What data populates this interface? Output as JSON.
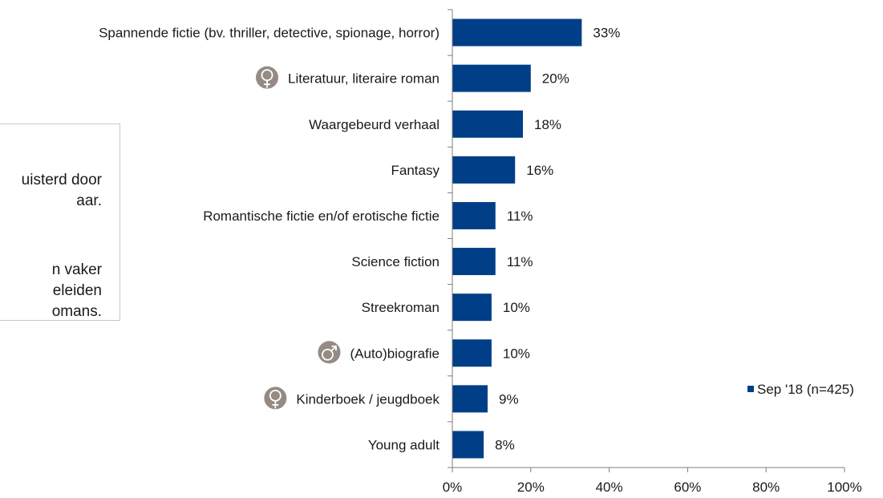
{
  "note": {
    "lines": [
      "uisterd door",
      "aar.",
      "n vaker",
      "eleiden",
      "omans."
    ]
  },
  "chart_data": {
    "type": "bar",
    "orientation": "horizontal",
    "categories": [
      "Spannende fictie (bv. thriller, detective, spionage, horror)",
      "Literatuur, literaire roman",
      "Waargebeurd verhaal",
      "Fantasy",
      "Romantische fictie en/of erotische fictie",
      "Science fiction",
      "Streekroman",
      "(Auto)biografie",
      "Kinderboek / jeugdboek",
      "Young adult"
    ],
    "series": [
      {
        "name": "Sep '18 (n=425)",
        "values": [
          33,
          20,
          18,
          16,
          11,
          11,
          10,
          10,
          9,
          8
        ],
        "value_labels": [
          "33%",
          "20%",
          "18%",
          "16%",
          "11%",
          "11%",
          "10%",
          "10%",
          "9%",
          "8%"
        ],
        "color": "#003f87"
      }
    ],
    "gender_markers": [
      null,
      "female-icon",
      null,
      null,
      null,
      null,
      null,
      "male-icon",
      "female-icon",
      null
    ],
    "marker_color": "#958a84",
    "xlim": [
      0,
      100
    ],
    "xticks": [
      0,
      20,
      40,
      60,
      80,
      100
    ],
    "xtick_labels": [
      "0%",
      "20%",
      "40%",
      "60%",
      "80%",
      "100%"
    ],
    "legend_position": "right",
    "grid": false
  }
}
